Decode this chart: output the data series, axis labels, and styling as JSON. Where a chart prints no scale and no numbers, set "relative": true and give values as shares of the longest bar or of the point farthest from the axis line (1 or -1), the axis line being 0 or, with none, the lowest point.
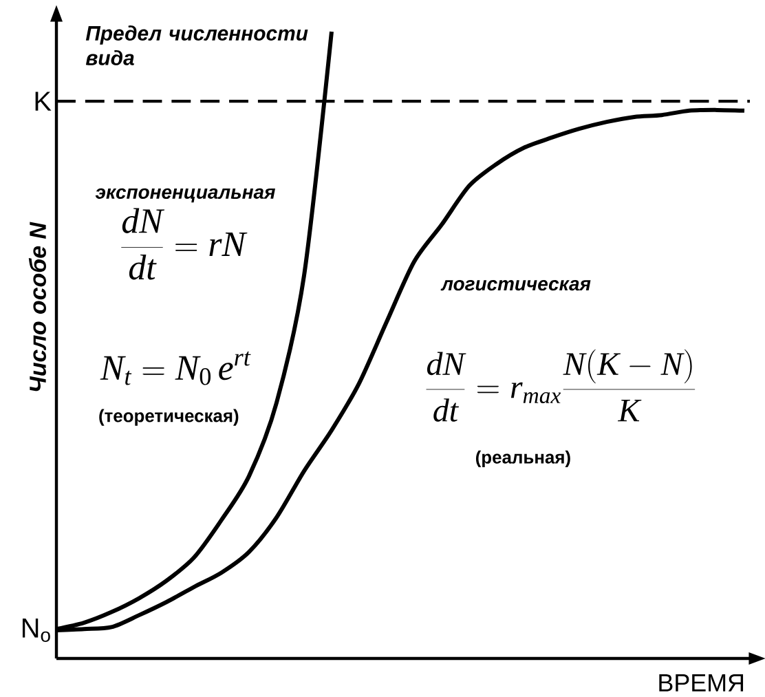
{
  "chart_data": {
    "type": "line",
    "relative": true,
    "xlabel": "ВРЕМЯ",
    "ylabel": "Число особе N",
    "categories": [
      null,
      null,
      null,
      null,
      null,
      null,
      null,
      null,
      null,
      null,
      null,
      null,
      null,
      null,
      null,
      null,
      null,
      null,
      null,
      null,
      null,
      null,
      null,
      null,
      null,
      null
    ],
    "series": [
      {
        "name": "экспоненциальная",
        "color": "#000000",
        "values": [
          0.047,
          0.057,
          0.074,
          0.096,
          0.124,
          0.161,
          0.221,
          0.291,
          0.408,
          0.611,
          1.0,
          null,
          null,
          null,
          null,
          null,
          null,
          null,
          null,
          null,
          null,
          null,
          null,
          null,
          null,
          null
        ]
      },
      {
        "name": "логистическая",
        "color": "#000000",
        "values": [
          0.045,
          0.047,
          0.05,
          0.069,
          0.09,
          0.114,
          0.137,
          0.17,
          0.225,
          0.299,
          0.364,
          0.439,
          0.537,
          0.633,
          0.692,
          0.754,
          0.789,
          0.815,
          0.831,
          0.845,
          0.856,
          0.864,
          0.867,
          0.874,
          0.875,
          0.874
        ]
      }
    ],
    "ref_lines": [
      {
        "axis": "y",
        "value": 0.889,
        "label": "K",
        "line_style": "dashed"
      }
    ],
    "annotations": [
      "Предел численности вида",
      "\\frac{dN}{dt} = rN",
      "N_t = N_0\\, e^{rt}",
      "(теоретическая)",
      "\\frac{dN}{dt} = r_{max}\\frac{N(K-N)}{K}",
      "(реальная)",
      "N$_{o}$"
    ],
    "marker": "none",
    "line_style": "solid"
  }
}
